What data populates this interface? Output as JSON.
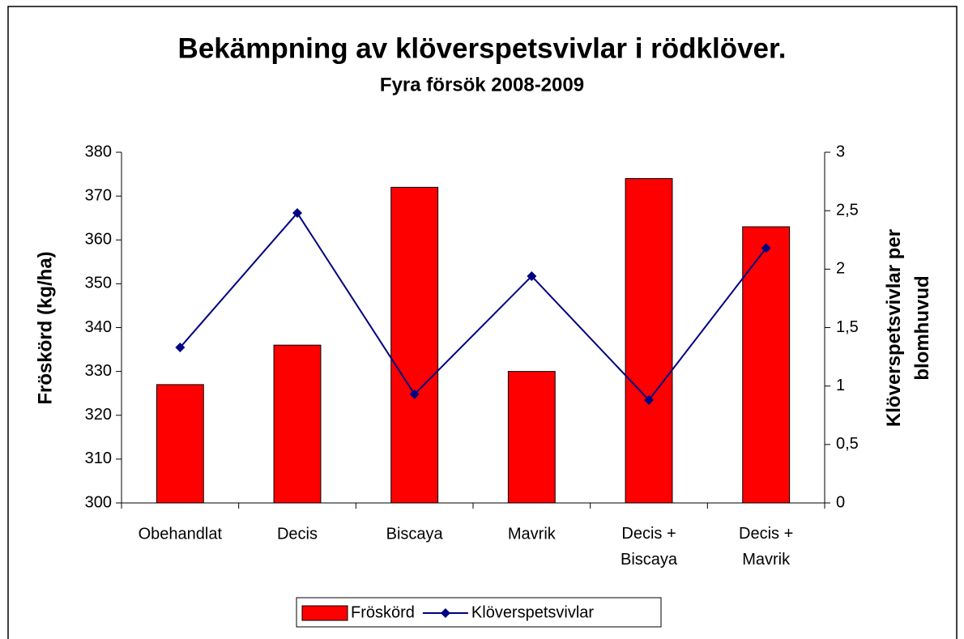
{
  "chart_data": {
    "type": "bar_line",
    "title": "Bekämpning av klöverspetsvivlar i rödklöver.",
    "subtitle": "Fyra försök 2008-2009",
    "y_label": "Fröskörd (kg/ha)",
    "y2_label": "Klöverspetsvivlar per blomhuvud",
    "categories": [
      "Obehandlat",
      "Decis",
      "Biscaya",
      "Mavrik",
      "Decis + Biscaya",
      "Decis + Mavrik"
    ],
    "series": [
      {
        "name": "Fröskörd",
        "type": "bar",
        "color": "#ff0000",
        "values": [
          327,
          336,
          372,
          330,
          374,
          363
        ]
      },
      {
        "name": "Klöverspetsvivlar",
        "type": "line",
        "axis": "y2",
        "color": "#000080",
        "values": [
          1.33,
          2.48,
          0.93,
          1.94,
          0.88,
          2.18
        ]
      }
    ],
    "ylim": [
      300,
      380
    ],
    "yticks": [
      300,
      310,
      320,
      330,
      340,
      350,
      360,
      370,
      380
    ],
    "y2lim": [
      0,
      3
    ],
    "y2ticks": [
      0,
      {
        "value": 0.5,
        "label": "0,5"
      },
      1,
      {
        "value": 1.5,
        "label": "1,5"
      },
      2,
      {
        "value": 2.5,
        "label": "2,5"
      },
      3
    ],
    "legend": "bottom"
  }
}
